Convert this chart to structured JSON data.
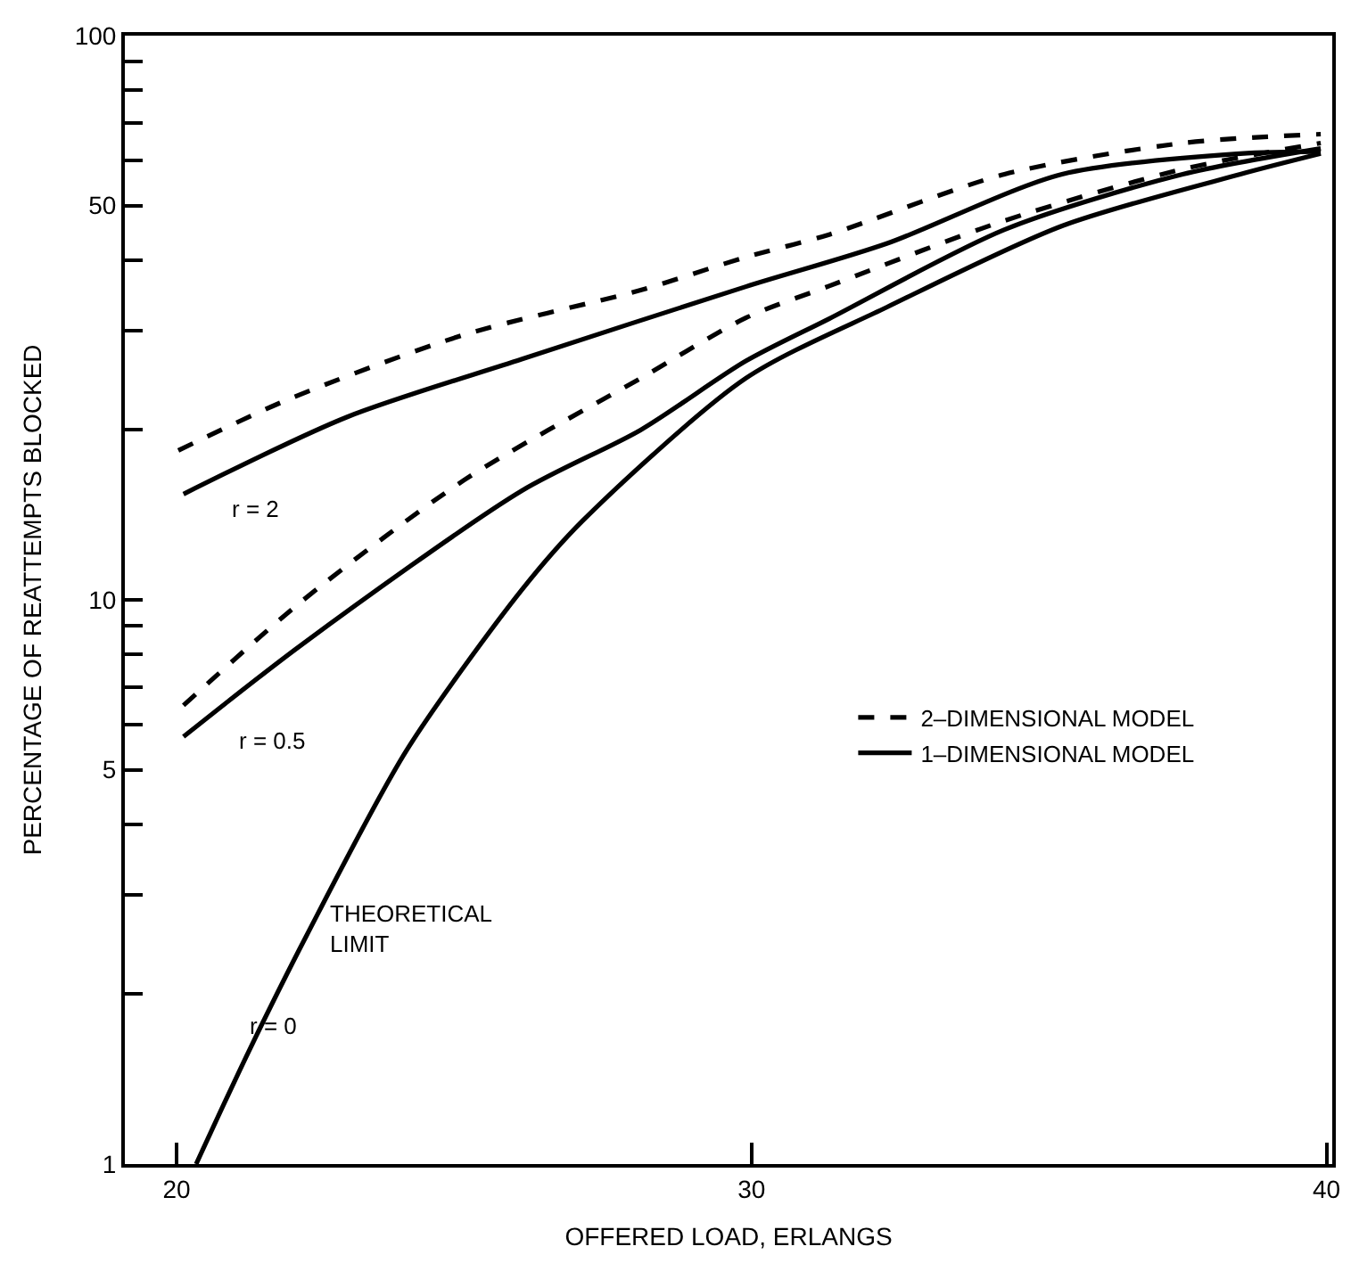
{
  "chart_data": {
    "type": "line",
    "xlabel": "OFFERED LOAD, ERLANGS",
    "ylabel": "PERCENTAGE OF REATTEMPTS BLOCKED",
    "log": "y",
    "legend": "right",
    "marker": "none",
    "xlim": [
      19.1,
      40.1
    ],
    "xticks": [
      20,
      30,
      40
    ],
    "ylim": [
      1,
      100
    ],
    "yticks": [
      1,
      {
        "value": 2,
        "label": null
      },
      {
        "value": 3,
        "label": null
      },
      {
        "value": 4,
        "label": null
      },
      5,
      {
        "value": 6,
        "label": null
      },
      {
        "value": 7,
        "label": null
      },
      {
        "value": 8,
        "label": null
      },
      {
        "value": 9,
        "label": null
      },
      10,
      {
        "value": 20,
        "label": null
      },
      {
        "value": 30,
        "label": null
      },
      {
        "value": 40,
        "label": null
      },
      50,
      {
        "value": 60,
        "label": null
      },
      {
        "value": 70,
        "label": null
      },
      {
        "value": 80,
        "label": null
      },
      {
        "value": 90,
        "label": null
      },
      100
    ],
    "series": [
      {
        "name": "2–DIMENSIONAL MODEL",
        "color": "#000000",
        "line_style": "dashed",
        "x": [
          20.03,
          21.96,
          25.0,
          28.07,
          29.9,
          31.35,
          34.4,
          37.5,
          39.9
        ],
        "values": [
          18.4,
          22.7,
          29.5,
          35.4,
          40.5,
          44.4,
          56.8,
          64.5,
          66.9
        ]
      },
      {
        "name": "1–DIMENSIONAL MODEL",
        "color": "#000000",
        "line_style": "solid",
        "x": [
          20.12,
          22.97,
          26.0,
          29.9,
          32.35,
          35.4,
          38.5,
          39.9
        ],
        "values": [
          15.4,
          21.1,
          26.7,
          35.9,
          42.8,
          56.8,
          61.8,
          62.3
        ]
      },
      {
        "color": "#000000",
        "line_style": "dashed",
        "x": [
          20.12,
          22.17,
          25.0,
          28.07,
          29.9,
          31.35,
          34.4,
          37.5,
          39.9
        ],
        "values": [
          6.5,
          9.93,
          16.3,
          24.7,
          31.6,
          36,
          47,
          58,
          64.5
        ]
      },
      {
        "color": "#000000",
        "line_style": "solid",
        "x": [
          20.12,
          22.17,
          26.0,
          28.07,
          29.9,
          31.35,
          34.4,
          37.5,
          39.9
        ],
        "values": [
          5.72,
          8.32,
          15.6,
          20,
          26.5,
          31.5,
          45.3,
          56.8,
          63.1
        ]
      },
      {
        "color": "#000000",
        "line_style": "solid",
        "x": [
          20.34,
          21.25,
          22.26,
          24.0,
          26.0,
          27.06,
          29.9,
          32.35,
          35.4,
          38.5,
          39.9
        ],
        "values": [
          1.0,
          1.58,
          2.54,
          5.41,
          10.4,
          13.8,
          24.7,
          33,
          46,
          56.8,
          61.8
        ]
      }
    ],
    "annotations": [
      "r = 2",
      "r = 0.5",
      "r = 0",
      "THEORETICAL LIMIT"
    ]
  }
}
